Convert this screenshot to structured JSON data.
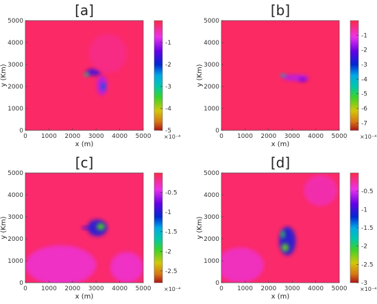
{
  "chart_data": [
    {
      "type": "heatmap",
      "title": "[a]",
      "xlabel": "x (m)",
      "ylabel": "y (Km)",
      "xlim": [
        0,
        5000
      ],
      "ylim": [
        0,
        5000
      ],
      "xticks": [
        0,
        1000,
        2000,
        3000,
        4000,
        5000
      ],
      "yticks": [
        0,
        1000,
        2000,
        3000,
        4000,
        5000
      ],
      "clim": [
        -5,
        0
      ],
      "colorbar_ticks": [
        -1,
        -2,
        -3,
        -4,
        -5
      ],
      "colorbar_multiplier": "×10⁻⁴",
      "background_value": -0.15,
      "features": [
        {
          "x": 2900,
          "y": 2650,
          "rx": 320,
          "ry": 160,
          "value": -1.6
        },
        {
          "x": 2600,
          "y": 2550,
          "rx": 120,
          "ry": 80,
          "value": -3.2
        },
        {
          "x": 3250,
          "y": 2050,
          "rx": 220,
          "ry": 450,
          "value": -1.0
        },
        {
          "x": 3300,
          "y": 2000,
          "rx": 90,
          "ry": 180,
          "value": -2.2
        },
        {
          "x": 3500,
          "y": 3500,
          "rx": 800,
          "ry": 900,
          "value": -0.3
        }
      ]
    },
    {
      "type": "heatmap",
      "title": "[b]",
      "xlabel": "x (m)",
      "ylabel": "y (Km)",
      "xlim": [
        0,
        5000
      ],
      "ylim": [
        0,
        5000
      ],
      "xticks": [
        0,
        1000,
        2000,
        3000,
        4000,
        5000
      ],
      "yticks": [
        0,
        1000,
        2000,
        3000,
        4000,
        5000
      ],
      "clim": [
        -7.5,
        0
      ],
      "colorbar_ticks": [
        -1,
        -2,
        -3,
        -4,
        -5,
        -6,
        -7
      ],
      "colorbar_multiplier": "×10⁻⁴",
      "background_value": -0.2,
      "features": [
        {
          "x": 3150,
          "y": 2400,
          "rx": 560,
          "ry": 140,
          "value": -1.5
        },
        {
          "x": 2620,
          "y": 2500,
          "rx": 120,
          "ry": 70,
          "value": -4.0
        },
        {
          "x": 3450,
          "y": 2300,
          "rx": 180,
          "ry": 90,
          "value": -2.0
        }
      ]
    },
    {
      "type": "heatmap",
      "title": "[c]",
      "xlabel": "x (m)",
      "ylabel": "y (Km)",
      "xlim": [
        0,
        5000
      ],
      "ylim": [
        0,
        5000
      ],
      "xticks": [
        0,
        1000,
        2000,
        3000,
        4000,
        5000
      ],
      "yticks": [
        0,
        1000,
        2000,
        3000,
        4000,
        5000
      ],
      "clim": [
        -2.8,
        0
      ],
      "colorbar_ticks": [
        -0.5,
        -1,
        -1.5,
        -2,
        -2.5
      ],
      "colorbar_multiplier": "×10⁻⁴",
      "background_value": -0.1,
      "features": [
        {
          "x": 3050,
          "y": 2500,
          "rx": 420,
          "ry": 380,
          "value": -1.0
        },
        {
          "x": 3200,
          "y": 2550,
          "rx": 170,
          "ry": 160,
          "value": -2.0
        },
        {
          "x": 2550,
          "y": 2500,
          "rx": 150,
          "ry": 70,
          "value": -0.9
        },
        {
          "x": 1500,
          "y": 800,
          "rx": 1500,
          "ry": 900,
          "value": -0.35
        },
        {
          "x": 4300,
          "y": 700,
          "rx": 700,
          "ry": 700,
          "value": -0.35
        }
      ]
    },
    {
      "type": "heatmap",
      "title": "[d]",
      "xlabel": "x (m)",
      "ylabel": "y (Km)",
      "xlim": [
        0,
        5000
      ],
      "ylim": [
        0,
        5000
      ],
      "xticks": [
        0,
        1000,
        2000,
        3000,
        4000,
        5000
      ],
      "yticks": [
        0,
        1000,
        2000,
        3000,
        4000,
        5000
      ],
      "clim": [
        -3,
        0
      ],
      "colorbar_ticks": [
        -0.5,
        -1,
        -1.5,
        -2,
        -2.5,
        -3
      ],
      "colorbar_multiplier": "×10⁻⁴",
      "background_value": -0.1,
      "features": [
        {
          "x": 2800,
          "y": 1900,
          "rx": 350,
          "ry": 650,
          "value": -1.1
        },
        {
          "x": 2700,
          "y": 1600,
          "rx": 160,
          "ry": 180,
          "value": -2.2
        },
        {
          "x": 2600,
          "y": 2200,
          "rx": 90,
          "ry": 180,
          "value": -2.0
        },
        {
          "x": 800,
          "y": 800,
          "rx": 1000,
          "ry": 800,
          "value": -0.35
        },
        {
          "x": 4200,
          "y": 4200,
          "rx": 700,
          "ry": 700,
          "value": -0.3
        }
      ]
    }
  ]
}
